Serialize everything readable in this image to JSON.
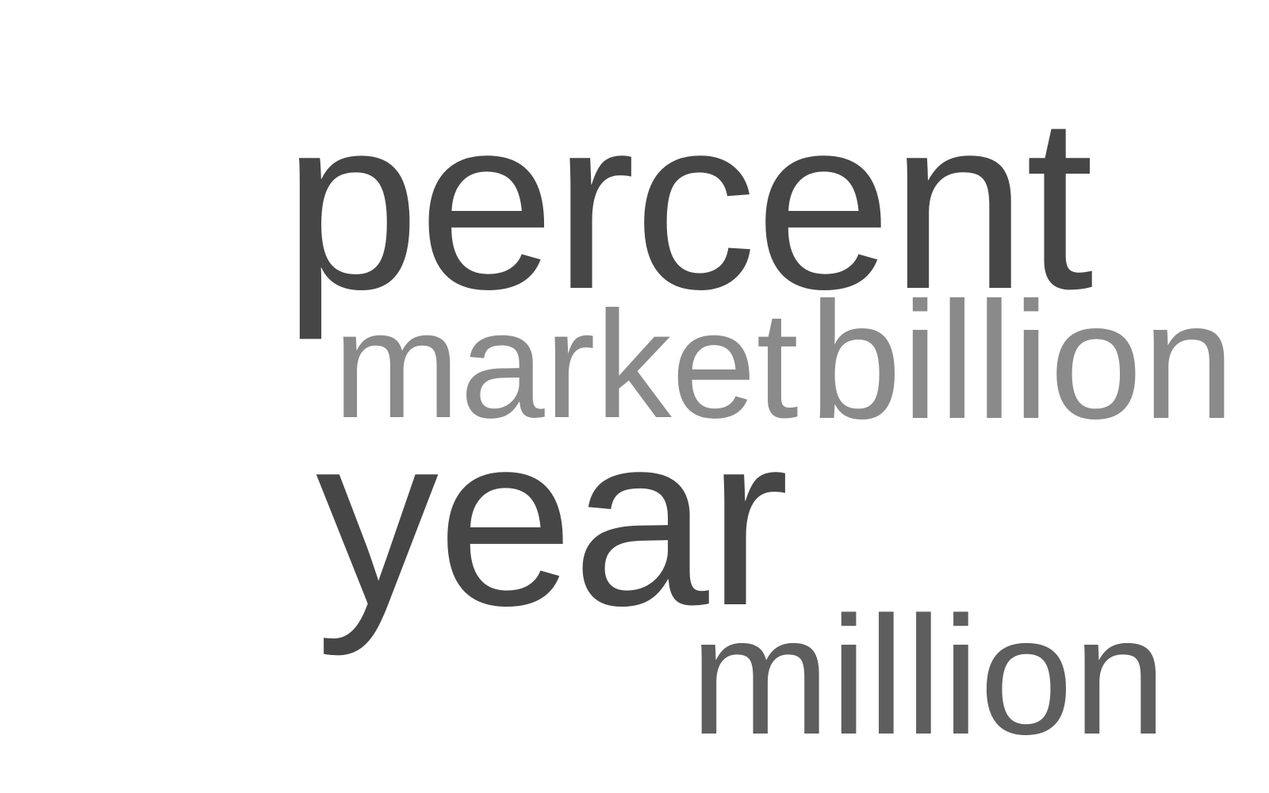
{
  "words": [
    {
      "text": "percent",
      "color": "#464646"
    },
    {
      "text": "market",
      "color": "#8a8a8a"
    },
    {
      "text": "billion",
      "color": "#8a8a8a"
    },
    {
      "text": "year",
      "color": "#464646"
    },
    {
      "text": "million",
      "color": "#5e5e5e"
    }
  ]
}
